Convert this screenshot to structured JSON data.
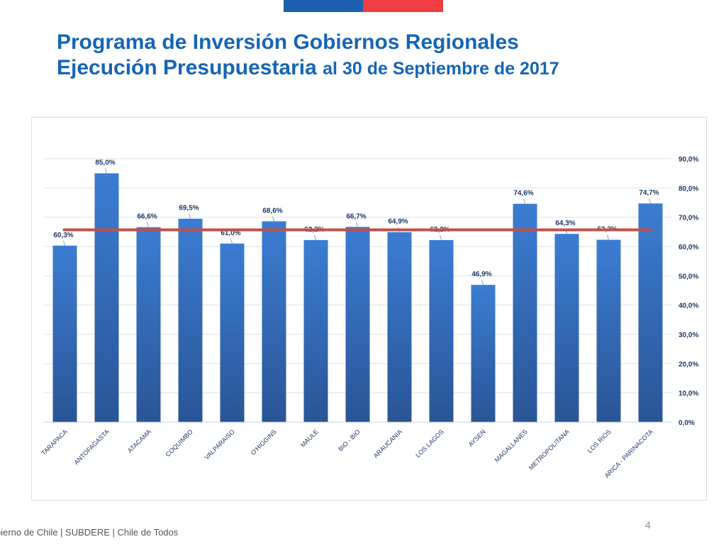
{
  "header": {
    "title_line1": "Programa de Inversión Gobiernos Regionales",
    "title_line2_main": "Ejecución Presupuestaria",
    "title_line2_rest": "al 30 de Septiembre de 2017"
  },
  "colors": {
    "flag_blue": "#1e5faf",
    "flag_red": "#ef3e42",
    "bar": "#3a75c4",
    "average_line": "#c0504d",
    "title": "#1665b5"
  },
  "chart_data": {
    "type": "bar",
    "categories": [
      "TARAPACA",
      "ANTOFAGASTA",
      "ATACAMA",
      "COQUIMBO",
      "VALPARAISO",
      "O'HIGGINS",
      "MAULE",
      "BIO - BIO",
      "ARAUCANIA",
      "LOS LAGOS",
      "AYSEN",
      "MAGALLANES",
      "METROPOLITANA",
      "LOS RIOS",
      "ARICA - PARINACOTA"
    ],
    "values": [
      60.3,
      85.0,
      66.6,
      69.5,
      61.0,
      68.6,
      62.2,
      66.7,
      64.9,
      62.2,
      46.9,
      74.6,
      64.3,
      62.3,
      74.7
    ],
    "value_labels": [
      "60,3%",
      "85,0%",
      "66,6%",
      "69,5%",
      "61,0%",
      "68,6%",
      "62,2%",
      "66,7%",
      "64,9%",
      "62,2%",
      "46,9%",
      "74,6%",
      "64,3%",
      "62,3%",
      "74,7%"
    ],
    "y_ticks": [
      0,
      10,
      20,
      30,
      40,
      50,
      60,
      70,
      80,
      90
    ],
    "y_tick_labels": [
      "0,0%",
      "10,0%",
      "20,0%",
      "30,0%",
      "40,0%",
      "50,0%",
      "60,0%",
      "70,0%",
      "80,0%",
      "90,0%"
    ],
    "ylim": [
      0,
      90
    ],
    "y_axis_side": "right",
    "grid": true,
    "reference_line": 65.7
  },
  "footer": {
    "text": "bierno de Chile | SUBDERE | Chile de Todos",
    "page_number": "4"
  }
}
